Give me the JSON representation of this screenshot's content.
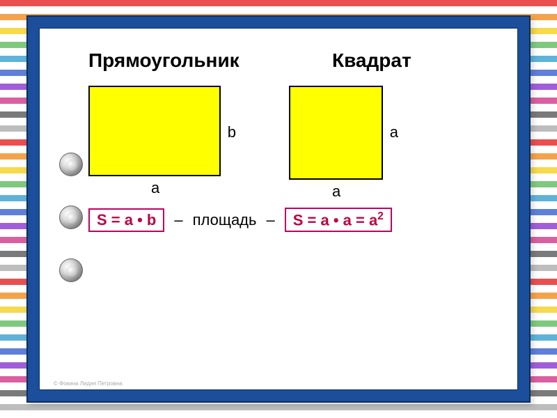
{
  "background": {
    "stripe_colors": [
      "#e94f4f",
      "#f5a34a",
      "#f7d94c",
      "#7fc97f",
      "#5fb3d9",
      "#5f7fd9",
      "#a05fd9",
      "#d95fa0",
      "#7a7a7a",
      "#bdbdbd"
    ],
    "stripe_height": 9,
    "gap_height": 11,
    "gap_color": "#ffffff"
  },
  "frame": {
    "outer_color": "#1b4f9c",
    "border_color": "#0d2d5a",
    "inner_bg": "#ffffff"
  },
  "headings": {
    "rectangle": "Прямоугольник",
    "square": "Квадрат",
    "fontsize": 28,
    "color": "#000000"
  },
  "shapes": {
    "fill_color": "#ffff00",
    "border_color": "#000000",
    "rectangle": {
      "width": 190,
      "height": 130,
      "label_right": "b",
      "label_bottom": "a"
    },
    "square": {
      "size": 135,
      "label_right": "a",
      "label_bottom": "a"
    },
    "label_fontsize": 22
  },
  "formulas": {
    "rectangle": "S = a • b",
    "middle_word": "площадь",
    "square": "S = a • a = a²",
    "box_border_color": "#c00060",
    "text_color": "#c00040",
    "fontsize": 22,
    "dash": "–"
  },
  "bullets": {
    "count": 3,
    "diameter": 34
  },
  "watermark": "© Фокина Лидия Петровна"
}
